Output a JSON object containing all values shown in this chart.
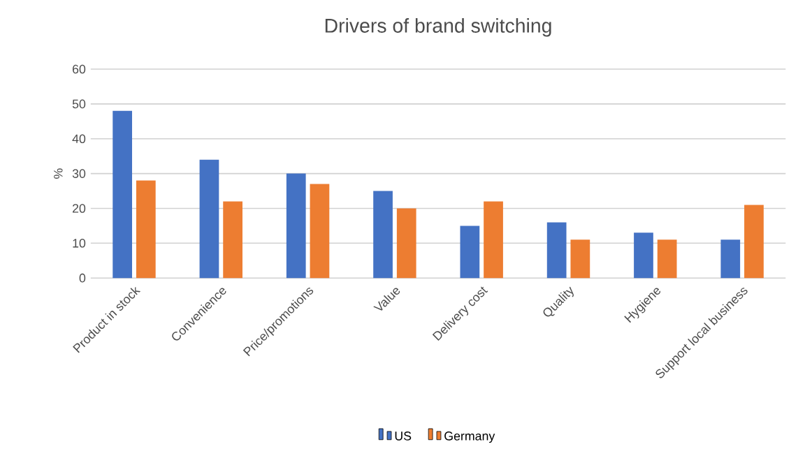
{
  "chart_data": {
    "type": "bar",
    "title": "Drivers of brand switching",
    "ylabel": "%",
    "categories": [
      "Product in stock",
      "Convenience",
      "Price/promotions",
      "Value",
      "Delivery cost",
      "Quality",
      "Hygiene",
      "Support local business"
    ],
    "series": [
      {
        "name": "US",
        "color": "#4472c4",
        "values": [
          48,
          34,
          30,
          25,
          15,
          16,
          13,
          11
        ]
      },
      {
        "name": "Germany",
        "color": "#ed7d31",
        "values": [
          28,
          22,
          27,
          20,
          22,
          11,
          11,
          21
        ]
      }
    ],
    "ylim": [
      0,
      60
    ],
    "yticks": [
      0,
      10,
      20,
      30,
      40,
      50,
      60
    ],
    "grid": "y",
    "legend": "bottom"
  }
}
